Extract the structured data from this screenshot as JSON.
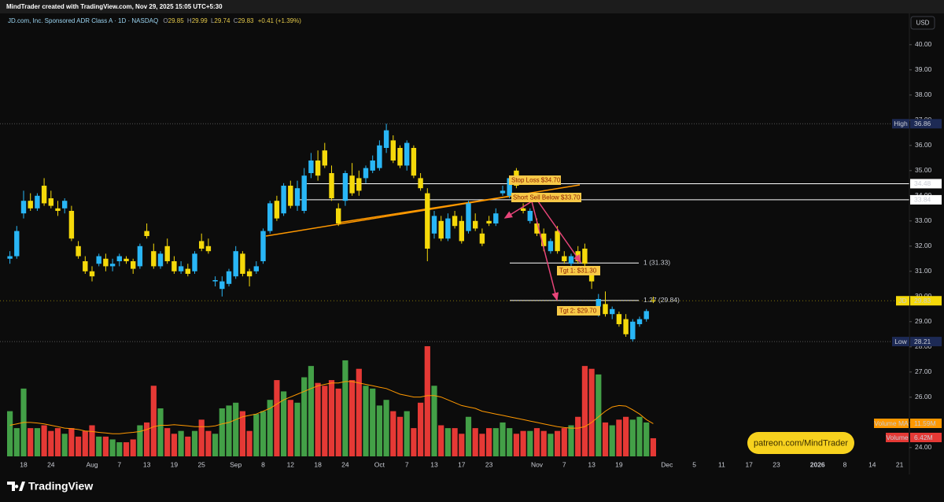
{
  "header": {
    "credit": "MindTrader created with TradingView.com, Nov 29, 2025 15:05 UTC+5:30",
    "symbol": "JD.com, Inc. Sponsored ADR Class A · 1D · NASDAQ",
    "ohlc": [
      {
        "key": "O",
        "value": 29.85
      },
      {
        "key": "H",
        "value": 29.99
      },
      {
        "key": "L",
        "value": 29.74
      },
      {
        "key": "C",
        "value": 29.83
      }
    ],
    "change": "+0.41 (+1.39%)"
  },
  "currency": "USD",
  "watermark": "patreon.com/MindTrader",
  "brand": "TradingView",
  "annotations": [
    "Stop Loss $34.70",
    "Short Sell Below $33.70",
    "Tgt 1: $31.30",
    "Tgt 2: $29.70"
  ],
  "chart_data": {
    "type": "candlestick",
    "up_color": "#29b6f6",
    "down_color": "#f5d90a",
    "volume_up_color": "#43a047",
    "volume_down_color": "#e53935",
    "volume_ma_color": "#ff9800",
    "ylim": [
      23.65,
      41.15
    ],
    "yticks": [
      {
        "value": 24,
        "label": "24.00"
      },
      {
        "value": 25,
        "label": "25.00"
      },
      {
        "value": 26,
        "label": "26.00"
      },
      {
        "value": 27,
        "label": "27.00"
      },
      {
        "value": 28,
        "label": "28.00"
      },
      {
        "value": 29,
        "label": "29.00"
      },
      {
        "value": 30,
        "label": "30.00"
      },
      {
        "value": 31,
        "label": "31.00"
      },
      {
        "value": 32,
        "label": "32.00"
      },
      {
        "value": 33,
        "label": "33.00"
      },
      {
        "value": 34,
        "label": "34.00"
      },
      {
        "value": 35,
        "label": "35.00"
      },
      {
        "value": 36,
        "label": "36.00"
      },
      {
        "value": 37,
        "label": "37.00"
      },
      {
        "value": 38,
        "label": "38.00"
      },
      {
        "value": 39,
        "label": "39.00"
      },
      {
        "value": 40,
        "label": "40.00"
      }
    ],
    "categories": [
      null,
      null,
      "18",
      null,
      null,
      null,
      "24",
      null,
      null,
      null,
      null,
      null,
      "Aug",
      null,
      null,
      null,
      "7",
      null,
      null,
      null,
      "13",
      null,
      null,
      null,
      "19",
      null,
      null,
      null,
      "25",
      null,
      null,
      null,
      null,
      "Sep",
      null,
      null,
      null,
      "8",
      null,
      null,
      null,
      "12",
      null,
      null,
      null,
      "18",
      null,
      null,
      null,
      "24",
      null,
      null,
      null,
      null,
      "Oct",
      null,
      null,
      null,
      "7",
      null,
      null,
      null,
      "13",
      null,
      null,
      null,
      "17",
      null,
      null,
      null,
      "23",
      null,
      null,
      null,
      null,
      null,
      null,
      "Nov",
      null,
      null,
      null,
      "7",
      null,
      null,
      null,
      "13",
      null,
      null,
      null,
      "19",
      null,
      null,
      null,
      null,
      null,
      null,
      "Dec",
      null,
      null,
      null,
      "5",
      null,
      null,
      null,
      "11",
      null,
      null,
      null,
      "17",
      null,
      null,
      null,
      "23",
      null,
      null,
      null,
      null,
      null,
      "2026",
      null,
      null,
      null,
      "8",
      null,
      null,
      null,
      "14",
      null,
      null,
      null,
      "21"
    ],
    "ohlc": [
      [
        31.5,
        31.8,
        31.3,
        31.6
      ],
      [
        31.6,
        32.8,
        31.5,
        32.6
      ],
      [
        33.3,
        34.2,
        33.1,
        33.8
      ],
      [
        33.8,
        34.1,
        33.4,
        33.5
      ],
      [
        33.5,
        34.1,
        33.4,
        34.0
      ],
      [
        34.4,
        34.7,
        33.6,
        33.7
      ],
      [
        33.9,
        34.2,
        33.5,
        33.6
      ],
      [
        33.5,
        33.8,
        33.2,
        33.4
      ],
      [
        33.5,
        33.9,
        33.3,
        33.8
      ],
      [
        33.4,
        33.6,
        32.2,
        32.3
      ],
      [
        32.0,
        32.2,
        31.5,
        31.6
      ],
      [
        31.4,
        31.6,
        30.9,
        31.0
      ],
      [
        31.0,
        31.2,
        30.6,
        30.8
      ],
      [
        31.3,
        31.7,
        31.2,
        31.6
      ],
      [
        31.5,
        31.7,
        31.0,
        31.2
      ],
      [
        31.2,
        31.5,
        31.0,
        31.3
      ],
      [
        31.4,
        31.7,
        31.2,
        31.6
      ],
      [
        31.5,
        31.6,
        31.3,
        31.4
      ],
      [
        31.4,
        31.5,
        30.9,
        31.1
      ],
      [
        31.2,
        32.1,
        31.1,
        32.0
      ],
      [
        32.6,
        32.9,
        32.3,
        32.4
      ],
      [
        31.8,
        32.1,
        31.1,
        31.2
      ],
      [
        31.2,
        31.8,
        31.1,
        31.7
      ],
      [
        32.0,
        32.3,
        31.3,
        31.4
      ],
      [
        31.4,
        31.6,
        30.9,
        31.0
      ],
      [
        31.0,
        31.4,
        30.9,
        31.2
      ],
      [
        31.1,
        31.3,
        30.8,
        30.9
      ],
      [
        31.0,
        31.8,
        30.9,
        31.7
      ],
      [
        32.2,
        32.5,
        31.8,
        31.9
      ],
      [
        32.0,
        32.3,
        31.7,
        31.8
      ],
      [
        30.6,
        30.8,
        30.4,
        30.65
      ],
      [
        30.3,
        30.8,
        30.0,
        30.6
      ],
      [
        30.5,
        31.1,
        30.4,
        31.0
      ],
      [
        30.8,
        32.0,
        30.7,
        31.8
      ],
      [
        31.7,
        31.8,
        30.8,
        30.9
      ],
      [
        31.0,
        31.1,
        30.4,
        30.8
      ],
      [
        31.0,
        31.4,
        30.9,
        31.2
      ],
      [
        31.4,
        32.7,
        31.3,
        32.6
      ],
      [
        32.6,
        33.8,
        32.5,
        33.7
      ],
      [
        33.8,
        34.0,
        33.0,
        33.1
      ],
      [
        33.3,
        34.5,
        33.2,
        34.4
      ],
      [
        34.4,
        34.6,
        33.5,
        33.6
      ],
      [
        33.6,
        34.6,
        33.4,
        34.3
      ],
      [
        33.4,
        35.1,
        33.3,
        34.8
      ],
      [
        34.9,
        35.7,
        34.7,
        35.4
      ],
      [
        35.4,
        35.8,
        34.6,
        34.8
      ],
      [
        35.8,
        36.1,
        35.1,
        35.2
      ],
      [
        34.9,
        35.2,
        33.8,
        33.9
      ],
      [
        33.5,
        33.7,
        32.8,
        32.9
      ],
      [
        33.8,
        35.0,
        33.6,
        34.9
      ],
      [
        34.8,
        35.3,
        34.0,
        34.1
      ],
      [
        34.7,
        35.0,
        34.0,
        34.2
      ],
      [
        34.7,
        35.2,
        34.5,
        35.1
      ],
      [
        35.0,
        35.6,
        34.9,
        35.4
      ],
      [
        35.1,
        36.2,
        35.0,
        36.0
      ],
      [
        35.9,
        36.86,
        35.7,
        36.6
      ],
      [
        36.2,
        36.4,
        35.3,
        35.4
      ],
      [
        35.9,
        36.0,
        35.1,
        35.2
      ],
      [
        35.2,
        36.2,
        35.0,
        36.1
      ],
      [
        35.9,
        36.0,
        34.7,
        34.8
      ],
      [
        34.7,
        34.9,
        34.2,
        34.3
      ],
      [
        34.1,
        34.3,
        31.4,
        31.9
      ],
      [
        32.5,
        33.4,
        32.3,
        33.2
      ],
      [
        33.0,
        33.2,
        32.2,
        32.3
      ],
      [
        32.3,
        33.3,
        32.2,
        33.1
      ],
      [
        33.2,
        33.4,
        32.7,
        32.8
      ],
      [
        33.0,
        33.2,
        32.1,
        32.2
      ],
      [
        32.6,
        33.8,
        32.5,
        33.7
      ],
      [
        33.0,
        33.3,
        32.6,
        32.7
      ],
      [
        32.5,
        32.7,
        32.0,
        32.1
      ],
      [
        33.0,
        33.2,
        32.8,
        32.9
      ],
      [
        32.9,
        33.5,
        32.8,
        33.3
      ],
      [
        34.1,
        34.4,
        34.0,
        34.2
      ],
      [
        34.0,
        34.8,
        33.9,
        34.7
      ],
      [
        35.0,
        35.1,
        34.3,
        34.4
      ],
      [
        33.5,
        33.7,
        33.3,
        33.4
      ],
      [
        33.0,
        33.5,
        32.9,
        33.4
      ],
      [
        32.9,
        33.1,
        32.4,
        32.5
      ],
      [
        32.5,
        32.7,
        31.8,
        32.0
      ],
      [
        31.8,
        32.3,
        31.7,
        32.2
      ],
      [
        32.6,
        32.8,
        31.7,
        31.8
      ],
      [
        31.6,
        31.8,
        31.3,
        31.4
      ],
      [
        31.3,
        31.7,
        31.2,
        31.6
      ],
      [
        31.8,
        32.0,
        31.3,
        31.4
      ],
      [
        31.9,
        32.1,
        31.2,
        31.3
      ],
      [
        31.0,
        31.2,
        30.3,
        30.6
      ],
      [
        29.6,
        30.1,
        29.2,
        29.9
      ],
      [
        29.7,
        30.2,
        29.2,
        29.3
      ],
      [
        29.3,
        29.6,
        29.1,
        29.5
      ],
      [
        29.3,
        29.4,
        28.8,
        28.9
      ],
      [
        29.1,
        29.3,
        28.4,
        28.5
      ],
      [
        28.3,
        29.1,
        28.21,
        29.0
      ],
      [
        28.9,
        29.2,
        28.8,
        29.1
      ],
      [
        29.1,
        29.5,
        29.0,
        29.42
      ],
      [
        29.85,
        29.99,
        29.74,
        29.83
      ],
      null,
      null,
      null,
      null,
      null,
      null,
      null,
      null,
      null,
      null,
      null,
      null,
      null,
      null,
      null,
      null,
      null,
      null,
      null,
      null,
      null,
      null,
      null,
      null,
      null,
      null,
      null,
      null,
      null,
      null,
      null,
      null,
      null,
      null,
      null,
      null
    ],
    "volume": [
      16,
      10,
      24,
      10,
      10,
      11,
      9,
      10,
      8,
      10,
      7,
      9,
      11,
      7,
      7,
      6,
      5,
      5,
      6,
      11,
      12,
      25,
      17,
      10,
      8,
      9,
      7,
      9,
      13,
      9,
      8,
      17,
      18,
      19,
      16,
      9,
      15,
      16,
      20,
      27,
      23,
      20,
      19,
      28,
      32,
      26,
      25,
      27,
      24,
      34,
      27,
      31,
      25,
      24,
      18,
      20,
      16,
      14,
      16,
      10,
      19,
      39,
      25,
      11,
      10,
      10,
      8,
      14,
      10,
      8,
      10,
      10,
      12,
      10,
      8,
      9,
      9,
      10,
      9,
      8,
      9,
      10,
      11,
      14,
      32,
      31,
      29,
      12,
      11,
      13,
      14,
      13,
      14,
      12,
      6.42,
      null,
      null,
      null,
      null,
      null,
      null,
      null,
      null,
      null,
      null,
      null,
      null,
      null,
      null,
      null,
      null,
      null,
      null,
      null,
      null,
      null,
      null,
      null,
      null,
      null,
      null,
      null,
      null,
      null,
      null,
      null,
      null,
      null,
      null,
      null,
      null
    ],
    "volume_ma": [
      11,
      11.5,
      12,
      12,
      11.8,
      11.5,
      11,
      10.5,
      10,
      9.8,
      9.5,
      9,
      8.8,
      8.5,
      8.3,
      8,
      8,
      8.3,
      8.5,
      8.8,
      9.5,
      10.5,
      11,
      11,
      11.2,
      11,
      10.8,
      10.5,
      10.5,
      10.5,
      10.8,
      11.5,
      12,
      13,
      14,
      14.5,
      15,
      16,
      17,
      18.5,
      20,
      21,
      22,
      23,
      24,
      25,
      25.5,
      26,
      26,
      26.5,
      26.5,
      26,
      25.5,
      25,
      24.5,
      24,
      23,
      22,
      21.5,
      21,
      21,
      21.5,
      21.5,
      21,
      20,
      19,
      18,
      17.5,
      17,
      16,
      15.5,
      15,
      14.5,
      14,
      13.5,
      13,
      12.5,
      12,
      11.5,
      11,
      10.5,
      10.2,
      10,
      10,
      10.5,
      12,
      14,
      16,
      17.5,
      18,
      17.8,
      16.5,
      15,
      13,
      11.59,
      null,
      null,
      null,
      null,
      null,
      null,
      null,
      null,
      null,
      null,
      null,
      null,
      null,
      null,
      null,
      null,
      null,
      null,
      null,
      null,
      null,
      null,
      null,
      null,
      null,
      null,
      null,
      null,
      null,
      null,
      null,
      null,
      null,
      null,
      null,
      null
    ],
    "volume_legend": [
      {
        "name": "Volume MA",
        "label": "11.59M"
      },
      {
        "name": "Volume",
        "label": "6.42M"
      }
    ],
    "price_lines": [
      34.48,
      33.84
    ],
    "fib_levels": [
      {
        "value": 31.33,
        "label": "1 (31.33)"
      },
      {
        "value": 29.84,
        "label": "1.27 (29.84)"
      }
    ],
    "extremes": [
      {
        "name": "High",
        "value": 36.86
      },
      {
        "name": "Low",
        "value": 28.21
      }
    ],
    "last_price": {
      "name": "JD",
      "value": 29.83
    }
  }
}
